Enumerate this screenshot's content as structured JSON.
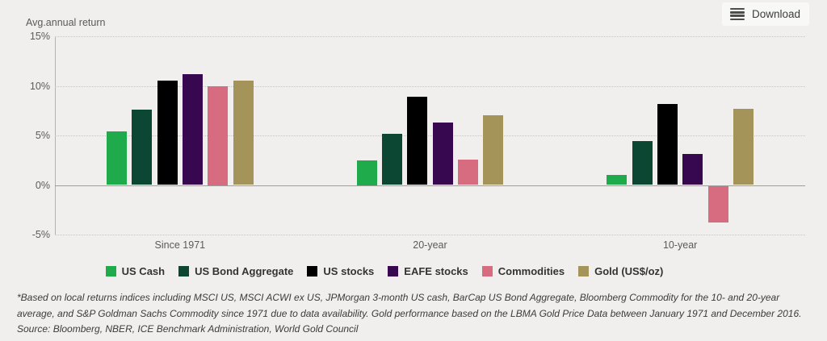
{
  "header": {
    "download_label": "Download"
  },
  "chart_data": {
    "type": "bar",
    "title": "Avg.annual return",
    "categories": [
      "Since 1971",
      "20-year",
      "10-year"
    ],
    "series": [
      {
        "name": "US Cash",
        "color": "#1fab4b",
        "values": [
          5.4,
          2.5,
          1.0
        ]
      },
      {
        "name": "US Bond Aggregate",
        "color": "#0b4733",
        "values": [
          7.6,
          5.2,
          4.4
        ]
      },
      {
        "name": "US stocks",
        "color": "#000000",
        "values": [
          10.5,
          8.9,
          8.2
        ]
      },
      {
        "name": "EAFE stocks",
        "color": "#37074f",
        "values": [
          11.2,
          6.3,
          3.1
        ]
      },
      {
        "name": "Commodities",
        "color": "#d76b7f",
        "values": [
          10.0,
          2.6,
          -3.7
        ]
      },
      {
        "name": "Gold (US$/oz)",
        "color": "#a49459",
        "values": [
          10.5,
          7.0,
          7.7
        ]
      }
    ],
    "ylabel": "Avg.annual return",
    "xlabel": "",
    "ylim": [
      -5,
      15
    ],
    "yticks": [
      15,
      10,
      5,
      0,
      -5
    ],
    "ytick_labels": [
      "15%",
      "10%",
      "5%",
      "0%",
      "-5%"
    ],
    "grid": "horizontal-dotted",
    "legend_position": "bottom"
  },
  "footnote": {
    "note": "*Based on local returns indices including MSCI US, MSCI ACWI ex US, JPMorgan 3-month US cash, BarCap US Bond Aggregate, Bloomberg Commodity for the 10- and 20-year average, and S&P Goldman Sachs Commodity since 1971 due to data availability. Gold performance based on the LBMA Gold Price Data between January 1971 and December 2016.",
    "source": "Source: Bloomberg, NBER, ICE Benchmark Administration, World Gold Council"
  }
}
